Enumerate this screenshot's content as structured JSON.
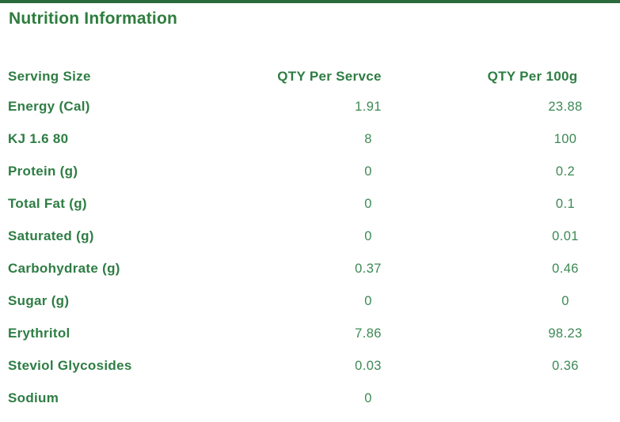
{
  "title": "Nutrition Information",
  "colors": {
    "top_bar": "#2b6a3c",
    "title_text": "#2e7d3e",
    "label_text": "#2e7d44",
    "value_text": "#3c8954",
    "background": "#ffffff"
  },
  "chart_data": {
    "type": "table",
    "title": "Nutrition Information",
    "columns": [
      "Serving Size",
      "QTY Per Servce",
      "QTY Per 100g"
    ],
    "rows": [
      {
        "label": "Energy (Cal)",
        "per_serve": "1.91",
        "per_100g": "23.88"
      },
      {
        "label": "KJ 1.6 80",
        "per_serve": "8",
        "per_100g": "100"
      },
      {
        "label": "Protein (g)",
        "per_serve": "0",
        "per_100g": "0.2"
      },
      {
        "label": "Total Fat (g)",
        "per_serve": "0",
        "per_100g": "0.1"
      },
      {
        "label": "Saturated (g)",
        "per_serve": "0",
        "per_100g": "0.01"
      },
      {
        "label": "Carbohydrate (g)",
        "per_serve": "0.37",
        "per_100g": "0.46"
      },
      {
        "label": "Sugar (g)",
        "per_serve": "0",
        "per_100g": "0"
      },
      {
        "label": "Erythritol",
        "per_serve": "7.86",
        "per_100g": "98.23"
      },
      {
        "label": "Steviol Glycosides",
        "per_serve": "0.03",
        "per_100g": "0.36"
      },
      {
        "label": "Sodium",
        "per_serve": "0",
        "per_100g": ""
      }
    ]
  }
}
